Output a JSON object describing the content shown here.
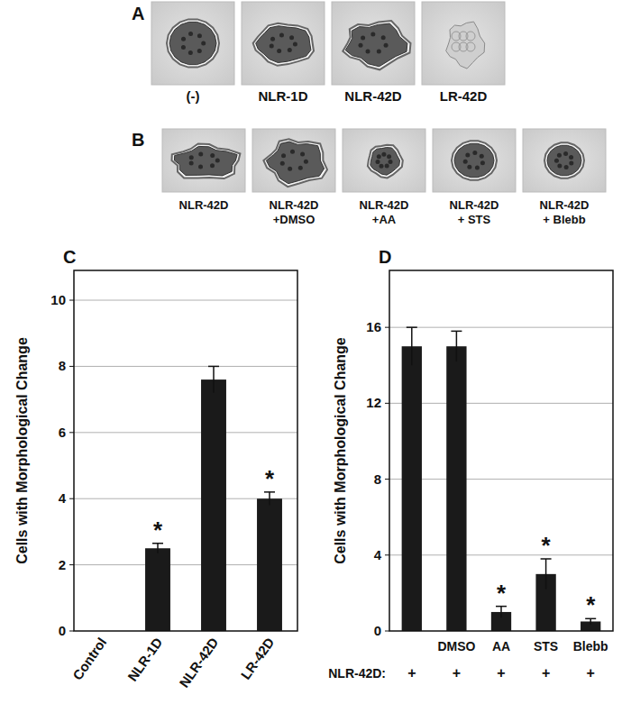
{
  "figure_panels": [
    {
      "letter": "A",
      "images": [
        [
          "(-)"
        ],
        [
          "NLR-1D"
        ],
        [
          "NLR-42D"
        ],
        [
          "LR-42D"
        ]
      ]
    },
    {
      "letter": "B",
      "images": [
        [
          "NLR-42D"
        ],
        [
          "NLR-42D",
          "+DMSO"
        ],
        [
          "NLR-42D",
          "+AA"
        ],
        [
          "NLR-42D",
          "+ STS"
        ],
        [
          "NLR-42D",
          "+ Blebb"
        ]
      ]
    }
  ],
  "chart_data": [
    {
      "type": "bar",
      "title": "C",
      "y_label": "Cells with Morphological Change",
      "categories": [
        "Control",
        "NLR-1D",
        "NLR-42D",
        "LR-42D"
      ],
      "values": [
        0,
        2.5,
        7.6,
        4.0
      ],
      "errors": [
        0,
        0.15,
        0.4,
        0.2
      ],
      "significance": [
        null,
        "*",
        null,
        "*"
      ],
      "color": "#1a1a1a",
      "ylim": [
        0,
        10.9
      ],
      "yticks": [
        0,
        2,
        4,
        6,
        8,
        10
      ],
      "grid": true
    },
    {
      "type": "bar",
      "title": "D",
      "y_label": "Cells with Morphological Change",
      "categories": [
        null,
        "DMSO",
        "AA",
        "STS",
        "Blebb"
      ],
      "values": [
        15,
        15,
        1.0,
        3.0,
        0.5
      ],
      "errors": [
        1.0,
        0.8,
        0.3,
        0.8,
        0.15
      ],
      "significance": [
        null,
        null,
        "*",
        "*",
        "*"
      ],
      "treatment_label": "NLR-42D:",
      "treatments": [
        "+",
        "+",
        "+",
        "+",
        "+"
      ],
      "color": "#1a1a1a",
      "ylim": [
        0,
        19
      ],
      "yticks": [
        0,
        4,
        8,
        12,
        16
      ],
      "grid": true
    }
  ]
}
